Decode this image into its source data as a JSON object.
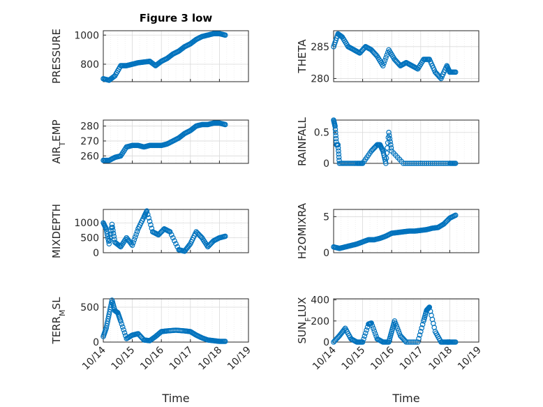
{
  "figure": {
    "title": "Figure 3 low"
  },
  "chart_data": [
    {
      "type": "scatter",
      "ylabel_main": "PRESSURE",
      "ylabel_sub": "",
      "ylabel_tail": "",
      "xlabel": "",
      "ylim": [
        680,
        1030
      ],
      "yticks": [
        800,
        1000
      ],
      "x": [
        14.0,
        14.2,
        14.4,
        14.6,
        14.8,
        15.0,
        15.2,
        15.4,
        15.6,
        15.8,
        16.0,
        16.2,
        16.4,
        16.6,
        16.8,
        17.0,
        17.2,
        17.4,
        17.6,
        17.8,
        18.0,
        18.2
      ],
      "y": [
        700,
        690,
        720,
        790,
        790,
        800,
        810,
        815,
        820,
        790,
        820,
        840,
        870,
        890,
        920,
        940,
        970,
        990,
        1000,
        1010,
        1010,
        1000
      ]
    },
    {
      "type": "scatter",
      "ylabel_main": "THETA",
      "ylabel_sub": "",
      "ylabel_tail": "",
      "xlabel": "",
      "ylim": [
        279.5,
        287.5
      ],
      "yticks": [
        280,
        285
      ],
      "x": [
        14.0,
        14.15,
        14.3,
        14.5,
        14.7,
        14.9,
        15.1,
        15.3,
        15.5,
        15.7,
        15.9,
        16.1,
        16.3,
        16.5,
        16.7,
        16.9,
        17.1,
        17.3,
        17.5,
        17.7,
        17.9,
        18.0,
        18.2
      ],
      "y": [
        285,
        287,
        286.5,
        285,
        284.5,
        284,
        285,
        284.5,
        283.5,
        282,
        284.5,
        283,
        282,
        282.5,
        282,
        281.5,
        283,
        283,
        281,
        280,
        282,
        281,
        281
      ]
    },
    {
      "type": "scatter",
      "ylabel_main": "AIR",
      "ylabel_sub": "T",
      "ylabel_tail": "EMP",
      "xlabel": "",
      "ylim": [
        255,
        284
      ],
      "yticks": [
        260,
        270,
        280
      ],
      "x": [
        14.0,
        14.2,
        14.4,
        14.6,
        14.8,
        15.0,
        15.2,
        15.4,
        15.6,
        15.8,
        16.0,
        16.2,
        16.4,
        16.6,
        16.8,
        17.0,
        17.2,
        17.4,
        17.6,
        17.8,
        18.0,
        18.2
      ],
      "y": [
        257,
        257,
        259,
        260,
        266,
        267,
        267,
        266,
        267,
        267,
        267,
        268,
        270,
        272,
        275,
        277,
        280,
        281,
        281,
        282,
        282,
        281
      ]
    },
    {
      "type": "scatter",
      "ylabel_main": "RAINFALL",
      "ylabel_sub": "",
      "ylabel_tail": "",
      "xlabel": "",
      "ylim": [
        0,
        0.7
      ],
      "yticks": [
        0,
        0.5
      ],
      "x": [
        14.0,
        14.05,
        14.1,
        14.15,
        14.2,
        14.5,
        14.8,
        15.0,
        15.3,
        15.5,
        15.6,
        15.7,
        15.8,
        15.9,
        16.0,
        16.4,
        16.8,
        17.2,
        17.6,
        18.0,
        18.2
      ],
      "y": [
        0.7,
        0.6,
        0.3,
        0.3,
        0.0,
        0.0,
        0.0,
        0.0,
        0.2,
        0.3,
        0.3,
        0.2,
        0.0,
        0.5,
        0.2,
        0.0,
        0.0,
        0.0,
        0.0,
        0.0,
        0.0
      ]
    },
    {
      "type": "scatter",
      "ylabel_main": "MIXDEPTH",
      "ylabel_sub": "",
      "ylabel_tail": "",
      "xlabel": "",
      "ylim": [
        0,
        1450
      ],
      "yticks": [
        0,
        500,
        1000
      ],
      "x": [
        14.0,
        14.1,
        14.2,
        14.3,
        14.4,
        14.6,
        14.8,
        15.0,
        15.2,
        15.4,
        15.5,
        15.7,
        15.9,
        16.1,
        16.3,
        16.6,
        16.8,
        17.0,
        17.2,
        17.4,
        17.6,
        17.8,
        18.0,
        18.2
      ],
      "y": [
        1000,
        800,
        300,
        950,
        350,
        200,
        500,
        250,
        800,
        1200,
        1400,
        700,
        600,
        800,
        700,
        100,
        50,
        300,
        700,
        500,
        200,
        400,
        500,
        550
      ]
    },
    {
      "type": "scatter",
      "ylabel_main": "H2OMIXRA",
      "ylabel_sub": "",
      "ylabel_tail": "",
      "xlabel": "",
      "ylim": [
        0,
        6
      ],
      "yticks": [
        0,
        5
      ],
      "x": [
        14.0,
        14.2,
        14.4,
        14.6,
        14.8,
        15.0,
        15.2,
        15.4,
        15.6,
        15.8,
        16.0,
        16.2,
        16.4,
        16.6,
        16.8,
        17.0,
        17.2,
        17.4,
        17.6,
        17.8,
        18.0,
        18.2
      ],
      "y": [
        0.8,
        0.6,
        0.8,
        1.0,
        1.2,
        1.5,
        1.8,
        1.8,
        2.0,
        2.3,
        2.7,
        2.8,
        2.9,
        3.0,
        3.0,
        3.1,
        3.2,
        3.4,
        3.5,
        4.0,
        4.8,
        5.2
      ]
    },
    {
      "type": "scatter",
      "ylabel_main": "TERR",
      "ylabel_sub": "M",
      "ylabel_tail": "SL",
      "xlabel": "Time",
      "ylim": [
        0,
        620
      ],
      "yticks": [
        0,
        500
      ],
      "x": [
        14.0,
        14.1,
        14.2,
        14.3,
        14.4,
        14.5,
        14.6,
        14.8,
        15.0,
        15.2,
        15.4,
        15.6,
        15.8,
        16.0,
        16.2,
        16.5,
        16.8,
        17.0,
        17.2,
        17.4,
        17.6,
        17.8,
        18.0,
        18.2
      ],
      "y": [
        80,
        200,
        400,
        600,
        450,
        420,
        300,
        50,
        100,
        120,
        30,
        20,
        80,
        150,
        160,
        170,
        160,
        150,
        100,
        60,
        30,
        20,
        10,
        10
      ]
    },
    {
      "type": "scatter",
      "ylabel_main": "SUN",
      "ylabel_sub": "F",
      "ylabel_tail": "LUX",
      "xlabel": "Time",
      "ylim": [
        0,
        410
      ],
      "yticks": [
        0,
        200,
        400
      ],
      "x": [
        14.0,
        14.2,
        14.4,
        14.6,
        14.8,
        15.0,
        15.2,
        15.3,
        15.5,
        15.7,
        15.9,
        16.0,
        16.1,
        16.3,
        16.5,
        16.9,
        17.1,
        17.2,
        17.3,
        17.5,
        17.7,
        17.9,
        18.0,
        18.2
      ],
      "y": [
        0,
        60,
        130,
        30,
        0,
        0,
        170,
        180,
        30,
        0,
        0,
        100,
        200,
        60,
        0,
        0,
        200,
        300,
        330,
        100,
        0,
        0,
        0,
        0
      ]
    }
  ],
  "x_axis": {
    "min": 14,
    "max": 19,
    "tick_labels": [
      "10/14",
      "10/15",
      "10/16",
      "10/17",
      "10/18",
      "10/19"
    ]
  }
}
